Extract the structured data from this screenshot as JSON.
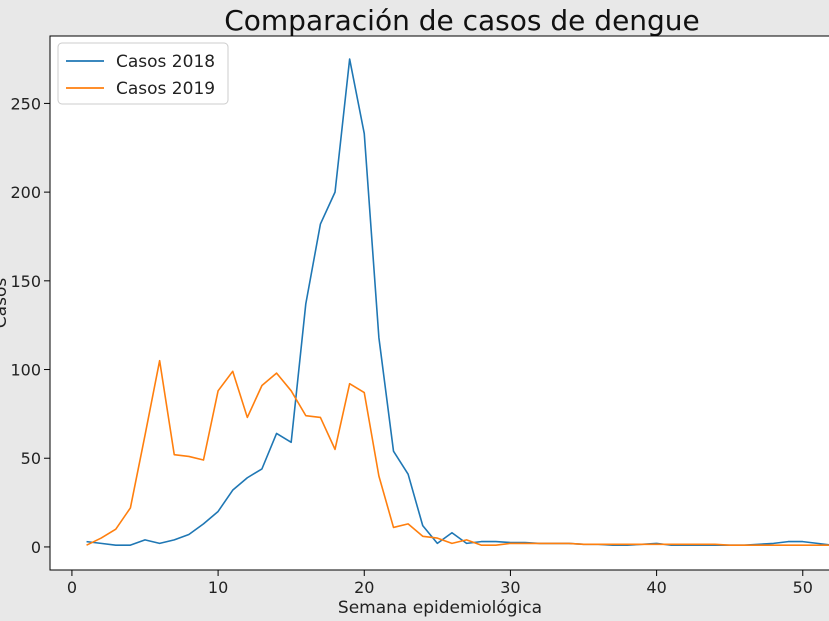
{
  "chart_data": {
    "type": "line",
    "title": "Comparación de casos de dengue",
    "xlabel": "Semana epidemiológica",
    "ylabel": "Casos",
    "xlim": [
      -1.5,
      52
    ],
    "ylim": [
      -13,
      288
    ],
    "xticks": [
      0,
      10,
      20,
      30,
      40,
      50
    ],
    "yticks": [
      0,
      50,
      100,
      150,
      200,
      250
    ],
    "grid": false,
    "legend_position": "top-left",
    "x": [
      1,
      2,
      3,
      4,
      5,
      6,
      7,
      8,
      9,
      10,
      11,
      12,
      13,
      14,
      15,
      16,
      17,
      18,
      19,
      20,
      21,
      22,
      23,
      24,
      25,
      26,
      27,
      28,
      29,
      30,
      31,
      32,
      33,
      34,
      35,
      36,
      37,
      38,
      39,
      40,
      41,
      42,
      43,
      44,
      45,
      46,
      47,
      48,
      49,
      50,
      51,
      52
    ],
    "series": [
      {
        "name": "Casos 2018",
        "color": "#1f77b4",
        "values": [
          3,
          2,
          1,
          1,
          4,
          2,
          4,
          7,
          13,
          20,
          32,
          39,
          44,
          64,
          59,
          137,
          182,
          200,
          275,
          233,
          118,
          54,
          41,
          12,
          2,
          8,
          2,
          3,
          3,
          2.5,
          2.5,
          2,
          2,
          2,
          1.5,
          1.5,
          1,
          1,
          1.5,
          2,
          1,
          1,
          1,
          1,
          1,
          1,
          1.5,
          2,
          3,
          3,
          2,
          1
        ]
      },
      {
        "name": "Casos 2019",
        "color": "#ff7f0e",
        "values": [
          1,
          5,
          10,
          22,
          63,
          105,
          52,
          51,
          49,
          88,
          99,
          73,
          91,
          98,
          88,
          74,
          73,
          55,
          92,
          87,
          40,
          11,
          13,
          6,
          5,
          2,
          4,
          1,
          1,
          2,
          2,
          2,
          2,
          2,
          1.5,
          1.5,
          1.5,
          1.5,
          1.5,
          1.5,
          1.5,
          1.5,
          1.5,
          1.5,
          1,
          1,
          1,
          1,
          1,
          1,
          1,
          1
        ]
      }
    ]
  }
}
